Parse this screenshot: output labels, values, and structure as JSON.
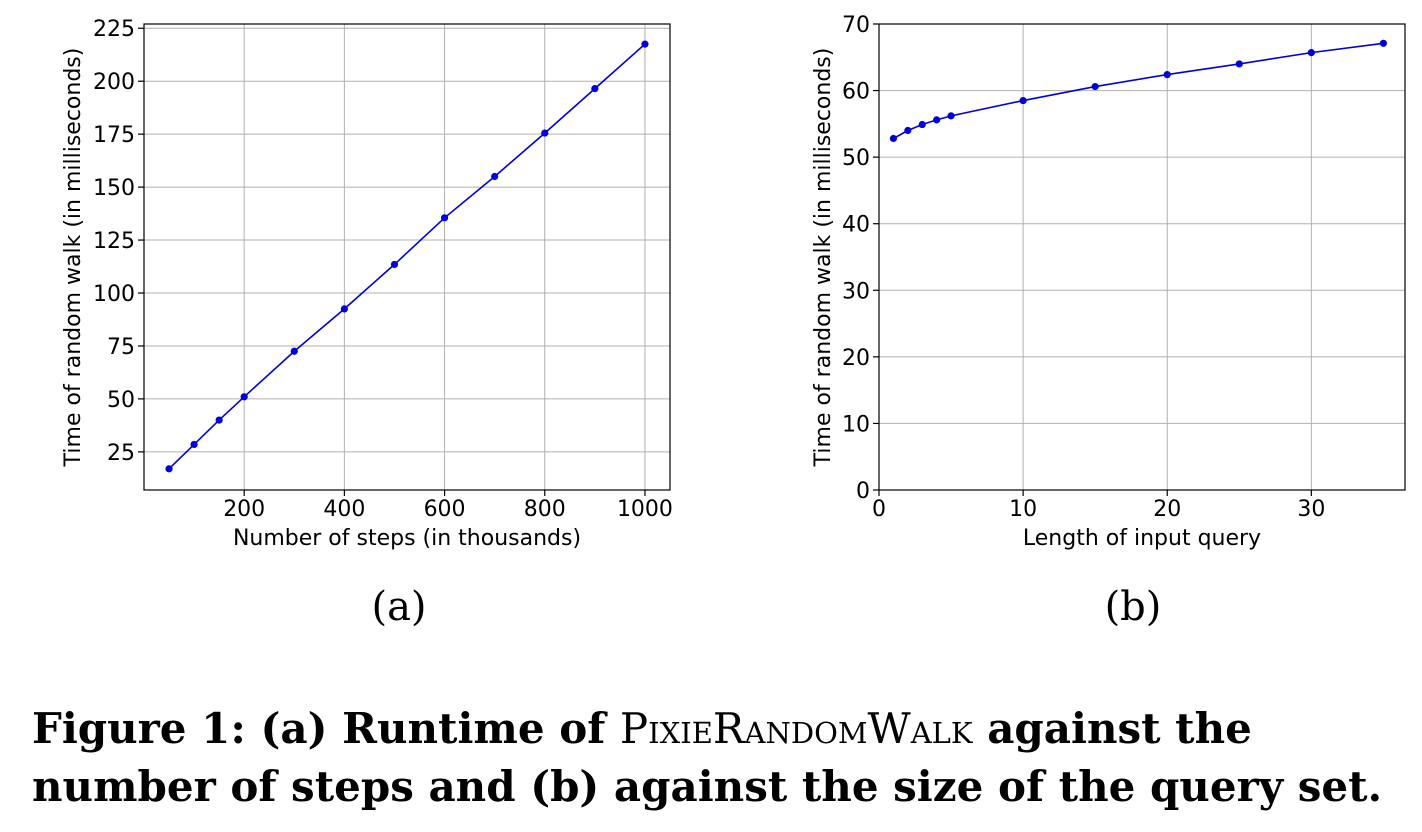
{
  "caption": {
    "lead": "Figure 1: (a) Runtime of ",
    "algorithm": "PixieRandomWalk",
    "tail": " against the number of steps and (b) against the size of the query set."
  },
  "chart_data": [
    {
      "type": "line",
      "panel_label": "(a)",
      "xlabel": "Number of steps (in thousands)",
      "ylabel": "Time of random walk (in milliseconds)",
      "xlim": [
        0,
        1050
      ],
      "ylim": [
        7,
        227
      ],
      "xticks": [
        200,
        400,
        600,
        800,
        1000
      ],
      "yticks": [
        25,
        50,
        75,
        100,
        125,
        150,
        175,
        200,
        225
      ],
      "grid": true,
      "color": "#0000dd",
      "series": [
        {
          "x": [
            50,
            100,
            150,
            200,
            300,
            400,
            500,
            600,
            700,
            800,
            900,
            1000
          ],
          "y": [
            17,
            28.5,
            40,
            51,
            72.5,
            92.5,
            113.5,
            135.5,
            155,
            175.5,
            196.5,
            217.5
          ]
        }
      ]
    },
    {
      "type": "line",
      "panel_label": "(b)",
      "xlabel": "Length of input query",
      "ylabel": "Time of random walk (in milliseconds)",
      "xlim": [
        0,
        36.5
      ],
      "ylim": [
        0,
        70
      ],
      "xticks": [
        0,
        10,
        20,
        30
      ],
      "yticks": [
        0,
        10,
        20,
        30,
        40,
        50,
        60,
        70
      ],
      "grid": true,
      "color": "#0000dd",
      "series": [
        {
          "x": [
            1,
            2,
            3,
            4,
            5,
            10,
            15,
            20,
            25,
            30,
            35
          ],
          "y": [
            52.8,
            54.0,
            54.9,
            55.6,
            56.2,
            58.5,
            60.6,
            62.4,
            64.0,
            65.7,
            67.1
          ]
        }
      ]
    }
  ]
}
